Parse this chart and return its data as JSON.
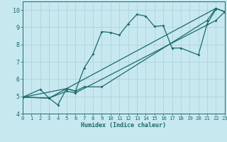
{
  "xlabel": "Humidex (Indice chaleur)",
  "xlim": [
    0,
    23
  ],
  "ylim": [
    4,
    10.5
  ],
  "yticks": [
    4,
    5,
    6,
    7,
    8,
    9,
    10
  ],
  "xticks": [
    0,
    1,
    2,
    3,
    4,
    5,
    6,
    7,
    8,
    9,
    10,
    11,
    12,
    13,
    14,
    15,
    16,
    17,
    18,
    19,
    20,
    21,
    22,
    23
  ],
  "bg_color": "#c8e8f0",
  "line_color": "#1a6b6b",
  "grid_color": "#a8cfd8",
  "lines": [
    {
      "x": [
        0,
        2,
        3,
        4,
        5,
        6,
        7,
        8,
        9,
        10,
        11,
        12,
        13,
        14,
        15,
        16,
        17,
        18,
        20,
        21,
        22
      ],
      "y": [
        4.95,
        5.4,
        4.9,
        4.5,
        5.45,
        5.3,
        6.65,
        7.45,
        8.75,
        8.7,
        8.55,
        9.2,
        9.75,
        9.65,
        9.05,
        9.1,
        7.8,
        7.8,
        7.4,
        9.2,
        10.05
      ]
    },
    {
      "x": [
        0,
        3,
        5,
        6,
        7,
        9,
        21,
        22,
        23
      ],
      "y": [
        4.95,
        4.9,
        5.45,
        5.3,
        5.55,
        5.55,
        9.4,
        10.1,
        9.9
      ]
    },
    {
      "x": [
        0,
        3,
        5,
        6,
        22,
        23
      ],
      "y": [
        4.95,
        4.9,
        5.3,
        5.2,
        9.4,
        9.9
      ]
    },
    {
      "x": [
        0,
        5,
        22,
        23
      ],
      "y": [
        4.95,
        5.45,
        10.1,
        9.9
      ]
    }
  ]
}
